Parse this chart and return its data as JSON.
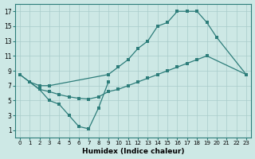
{
  "xlabel": "Humidex (Indice chaleur)",
  "background_color": "#cde8e5",
  "grid_color": "#a8ccca",
  "line_color": "#2d7d7a",
  "xlim": [
    -0.5,
    23.5
  ],
  "ylim": [
    0,
    18
  ],
  "xticks": [
    0,
    1,
    2,
    3,
    4,
    5,
    6,
    7,
    8,
    9,
    10,
    11,
    12,
    13,
    14,
    15,
    16,
    17,
    18,
    19,
    20,
    21,
    22,
    23
  ],
  "yticks": [
    1,
    3,
    5,
    7,
    9,
    11,
    13,
    15,
    17
  ],
  "line1_x": [
    0,
    1,
    2,
    3,
    4,
    5,
    6,
    7,
    8,
    9
  ],
  "line1_y": [
    8.5,
    7.5,
    6.5,
    5.0,
    4.5,
    3.0,
    1.5,
    1.2,
    4.0,
    7.5
  ],
  "line2_x": [
    0,
    1,
    2,
    3,
    9,
    10,
    11,
    12,
    13,
    14,
    15,
    16,
    17,
    18,
    19,
    20,
    23
  ],
  "line2_y": [
    8.5,
    7.5,
    7.0,
    7.0,
    8.5,
    9.5,
    10.5,
    12.0,
    13.0,
    15.0,
    15.5,
    17.0,
    17.0,
    17.0,
    15.5,
    13.5,
    8.5
  ],
  "line3_x": [
    1,
    2,
    3,
    4,
    5,
    6,
    7,
    8,
    9,
    10,
    11,
    12,
    13,
    14,
    15,
    16,
    17,
    18,
    19,
    23
  ],
  "line3_y": [
    7.5,
    6.5,
    6.2,
    5.8,
    5.5,
    5.3,
    5.2,
    5.5,
    6.2,
    6.5,
    7.0,
    7.5,
    8.0,
    8.5,
    9.0,
    9.5,
    10.0,
    10.5,
    11.0,
    8.5
  ]
}
